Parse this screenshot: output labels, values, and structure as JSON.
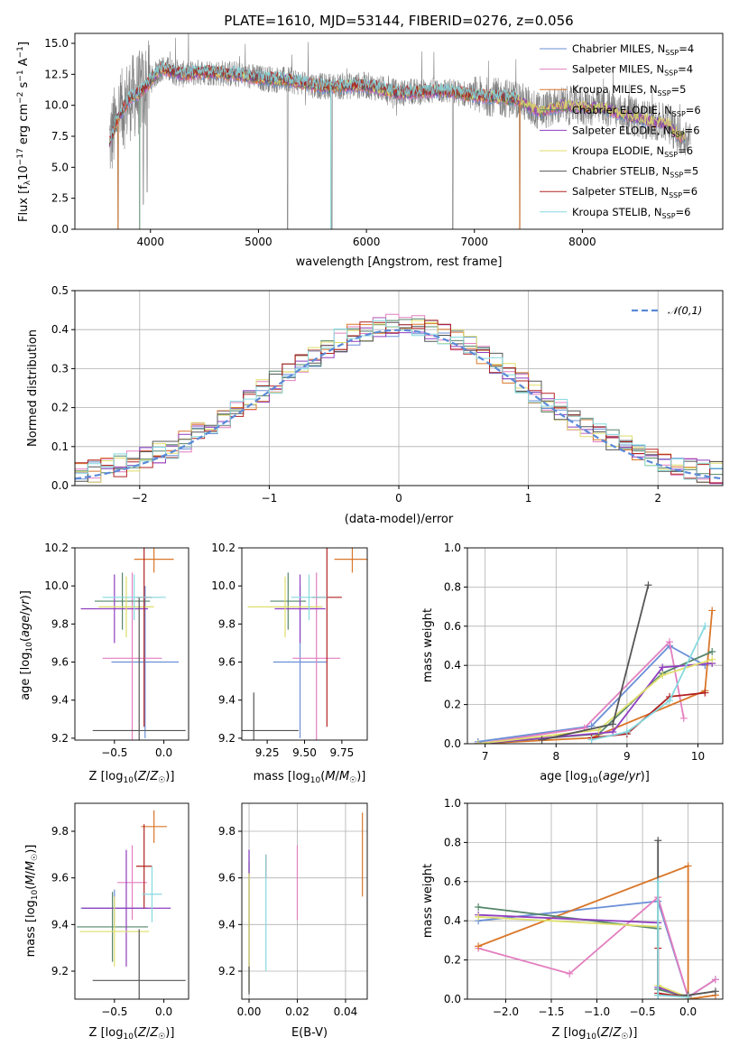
{
  "colors": [
    "#6a8fd6",
    "#e37fbf",
    "#d9772a",
    "#55866a",
    "#8f3fbf",
    "#dede6a",
    "#555555",
    "#b22222",
    "#86d9df"
  ],
  "chart_data": [
    {
      "type": "line",
      "title": "PLATE=1610, MJD=53144, FIBERID=0276, z=0.056",
      "xlabel": "wavelength [Angstrom, rest frame]",
      "ylabel": "Flux [f_λ10^-17 erg cm^-2 s^-1 A^-1]",
      "xlim": [
        3300,
        9300
      ],
      "ylim": [
        0,
        15.8
      ],
      "xticks": [
        4000,
        5000,
        6000,
        7000,
        8000
      ],
      "yticks": [
        0.0,
        2.5,
        5.0,
        7.5,
        10.0,
        12.5,
        15.0
      ],
      "legend_position": "upper right",
      "legend": [
        "Chabrier MILES, N_SSP=4",
        "Salpeter MILES, N_SSP=4",
        "Kroupa MILES, N_SSP=5",
        "Chabrier ELODIE, N_SSP=6",
        "Salpeter ELODIE, N_SSP=6",
        "Kroupa ELODIE, N_SSP=6",
        "Chabrier STELIB, N_SSP=5",
        "Salpeter STELIB, N_SSP=6",
        "Kroupa STELIB, N_SSP=6"
      ],
      "data_series": {
        "name": "data",
        "color": "#808080",
        "wavelength_range": [
          3600,
          9000
        ],
        "approx_level": 11.5
      },
      "continuum_points": [
        [
          3620,
          7.0
        ],
        [
          3700,
          9.0
        ],
        [
          3800,
          10.5
        ],
        [
          3900,
          11.0
        ],
        [
          4000,
          12.0
        ],
        [
          4100,
          13.0
        ],
        [
          4300,
          12.5
        ],
        [
          4500,
          12.7
        ],
        [
          4800,
          12.5
        ],
        [
          5000,
          12.2
        ],
        [
          5300,
          12.0
        ],
        [
          5600,
          11.5
        ],
        [
          6000,
          11.6
        ],
        [
          6300,
          11.0
        ],
        [
          6700,
          11.2
        ],
        [
          7000,
          10.8
        ],
        [
          7400,
          10.5
        ],
        [
          7600,
          9.5
        ],
        [
          7800,
          10.0
        ],
        [
          8200,
          9.8
        ],
        [
          8500,
          9.0
        ],
        [
          8800,
          8.5
        ],
        [
          8900,
          7.5
        ]
      ]
    },
    {
      "type": "histogram",
      "xlabel": "(data-model)/error",
      "ylabel": "Normed distribution",
      "xlim": [
        -2.5,
        2.5
      ],
      "ylim": [
        0,
        0.5
      ],
      "xticks": [
        -2,
        -1,
        0,
        1,
        2
      ],
      "yticks": [
        0.0,
        0.1,
        0.2,
        0.3,
        0.4,
        0.5
      ],
      "grid": true,
      "legend": [
        "𝒩(0,1)"
      ],
      "legend_position": "upper right",
      "reference_curve": {
        "name": "𝒩(0,1)",
        "mean": 0,
        "sigma": 1,
        "style": "dashed"
      },
      "bin_width": 0.1
    },
    {
      "type": "scatter",
      "xlabel": "Z [log10(Z/Z☉)]",
      "ylabel": "age [log10(age/yr)]",
      "xlim": [
        -0.9,
        0.25
      ],
      "ylim": [
        9.19,
        10.2
      ],
      "xticks": [
        -0.5,
        0.0
      ],
      "yticks": [
        9.2,
        9.4,
        9.6,
        9.8,
        10.0,
        10.2
      ],
      "points": [
        {
          "c": 0,
          "x": -0.19,
          "y": 9.6,
          "xerr": 0.34,
          "yerr": 0.4
        },
        {
          "c": 1,
          "x": -0.32,
          "y": 9.62,
          "xerr": 0.3,
          "yerr": 0.45
        },
        {
          "c": 2,
          "x": -0.1,
          "y": 10.14,
          "xerr": 0.2,
          "yerr": 0.07
        },
        {
          "c": 3,
          "x": -0.42,
          "y": 9.92,
          "xerr": 0.28,
          "yerr": 0.15
        },
        {
          "c": 4,
          "x": -0.5,
          "y": 9.88,
          "xerr": 0.34,
          "yerr": 0.18
        },
        {
          "c": 5,
          "x": -0.38,
          "y": 9.89,
          "xerr": 0.28,
          "yerr": 0.16
        },
        {
          "c": 6,
          "x": -0.25,
          "y": 9.24,
          "xerr": 0.47,
          "yerr": 0.7
        },
        {
          "c": 7,
          "x": -0.2,
          "y": 9.94,
          "xerr": 0.08,
          "yerr": 0.68
        },
        {
          "c": 8,
          "x": -0.3,
          "y": 9.94,
          "xerr": 0.32,
          "yerr": 0.12
        }
      ]
    },
    {
      "type": "scatter",
      "xlabel": "mass [log10(M/M☉)]",
      "ylabel": "",
      "xlim": [
        9.08,
        9.92
      ],
      "ylim": [
        9.19,
        10.2
      ],
      "xticks": [
        9.25,
        9.5,
        9.75
      ],
      "yticks": [
        9.2,
        9.4,
        9.6,
        9.8,
        10.0,
        10.2
      ],
      "points": [
        {
          "c": 0,
          "x": 9.47,
          "y": 9.6,
          "xerr": 0.18,
          "yerr": 0.4
        },
        {
          "c": 1,
          "x": 9.58,
          "y": 9.62,
          "xerr": 0.16,
          "yerr": 0.45
        },
        {
          "c": 2,
          "x": 9.82,
          "y": 10.14,
          "xerr": 0.12,
          "yerr": 0.07
        },
        {
          "c": 3,
          "x": 9.39,
          "y": 9.92,
          "xerr": 0.12,
          "yerr": 0.15
        },
        {
          "c": 4,
          "x": 9.47,
          "y": 9.88,
          "xerr": 0.17,
          "yerr": 0.18
        },
        {
          "c": 5,
          "x": 9.37,
          "y": 9.89,
          "xerr": 0.25,
          "yerr": 0.16
        },
        {
          "c": 6,
          "x": 9.16,
          "y": 9.24,
          "xerr": 0.3,
          "yerr": 0.2
        },
        {
          "c": 7,
          "x": 9.65,
          "y": 9.94,
          "xerr": 0.1,
          "yerr": 0.68
        },
        {
          "c": 8,
          "x": 9.53,
          "y": 9.94,
          "xerr": 0.12,
          "yerr": 0.12
        }
      ]
    },
    {
      "type": "line",
      "xlabel": "age [log10(age/yr)]",
      "ylabel": "mass weight",
      "xlim": [
        6.75,
        10.35
      ],
      "ylim": [
        0,
        1.0
      ],
      "xticks": [
        7,
        8,
        9,
        10
      ],
      "yticks": [
        0.0,
        0.2,
        0.4,
        0.6,
        0.8,
        1.0
      ],
      "grid": true,
      "series": [
        {
          "c": 0,
          "x": [
            6.9,
            8.5,
            9.6,
            10.1
          ],
          "y": [
            0.01,
            0.09,
            0.5,
            0.4
          ]
        },
        {
          "c": 1,
          "x": [
            6.9,
            8.4,
            9.6,
            9.8
          ],
          "y": [
            0.0,
            0.08,
            0.52,
            0.13
          ]
        },
        {
          "c": 2,
          "x": [
            6.9,
            8.5,
            10.1,
            10.2
          ],
          "y": [
            0.0,
            0.03,
            0.27,
            0.68
          ]
        },
        {
          "c": 3,
          "x": [
            6.9,
            8.6,
            9.5,
            10.2
          ],
          "y": [
            0.0,
            0.05,
            0.36,
            0.47
          ]
        },
        {
          "c": 4,
          "x": [
            6.9,
            8.8,
            9.5,
            10.2
          ],
          "y": [
            0.0,
            0.06,
            0.39,
            0.41
          ]
        },
        {
          "c": 5,
          "x": [
            6.9,
            8.6,
            9.5,
            10.2
          ],
          "y": [
            0.0,
            0.07,
            0.35,
            0.43
          ]
        },
        {
          "c": 6,
          "x": [
            7.8,
            8.8,
            9.3
          ],
          "y": [
            0.02,
            0.1,
            0.81
          ]
        },
        {
          "c": 7,
          "x": [
            8.5,
            9.0,
            9.6,
            10.1
          ],
          "y": [
            0.03,
            0.05,
            0.24,
            0.26
          ]
        },
        {
          "c": 8,
          "x": [
            8.5,
            9.0,
            9.6,
            10.1
          ],
          "y": [
            0.02,
            0.06,
            0.22,
            0.6
          ]
        }
      ]
    },
    {
      "type": "scatter",
      "xlabel": "Z [log10(Z/Z☉)]",
      "ylabel": "mass [log10(M/M☉)]",
      "xlim": [
        -0.9,
        0.25
      ],
      "ylim": [
        9.08,
        9.92
      ],
      "xticks": [
        -0.5,
        0.0
      ],
      "yticks": [
        9.2,
        9.4,
        9.6,
        9.8
      ],
      "points": [
        {
          "c": 0,
          "x": -0.5,
          "y": 9.47,
          "xerr": 0.34,
          "yerr": 0.08
        },
        {
          "c": 1,
          "x": -0.32,
          "y": 9.58,
          "xerr": 0.15,
          "yerr": 0.16
        },
        {
          "c": 2,
          "x": -0.1,
          "y": 9.82,
          "xerr": 0.13,
          "yerr": 0.07
        },
        {
          "c": 3,
          "x": -0.52,
          "y": 9.39,
          "xerr": 0.36,
          "yerr": 0.15
        },
        {
          "c": 4,
          "x": -0.38,
          "y": 9.47,
          "xerr": 0.45,
          "yerr": 0.25
        },
        {
          "c": 5,
          "x": -0.5,
          "y": 9.37,
          "xerr": 0.35,
          "yerr": 0.15
        },
        {
          "c": 6,
          "x": -0.25,
          "y": 9.16,
          "xerr": 0.47,
          "yerr": 0.22
        },
        {
          "c": 7,
          "x": -0.2,
          "y": 9.65,
          "xerr": 0.08,
          "yerr": 0.18
        },
        {
          "c": 8,
          "x": -0.12,
          "y": 9.53,
          "xerr": 0.1,
          "yerr": 0.12
        }
      ]
    },
    {
      "type": "scatter",
      "xlabel": "E(B-V)",
      "ylabel": "",
      "xlim": [
        -0.003,
        0.049
      ],
      "ylim": [
        9.08,
        9.92
      ],
      "xticks": [
        0.0,
        0.02,
        0.04
      ],
      "yticks": [
        9.2,
        9.4,
        9.6,
        9.8
      ],
      "grid": true,
      "points": [
        {
          "c": 0,
          "x": 0.0,
          "y": 9.47,
          "yerr": 0.25
        },
        {
          "c": 1,
          "x": 0.02,
          "y": 9.58,
          "yerr": 0.16
        },
        {
          "c": 2,
          "x": 0.047,
          "y": 9.7,
          "yerr": 0.18
        },
        {
          "c": 3,
          "x": 0.0,
          "y": 9.39,
          "yerr": 0.28
        },
        {
          "c": 4,
          "x": 0.0,
          "y": 9.47,
          "yerr": 0.25
        },
        {
          "c": 5,
          "x": 0.0,
          "y": 9.37,
          "yerr": 0.25
        },
        {
          "c": 6,
          "x": 0.0,
          "y": 9.16,
          "yerr": 0.06
        },
        {
          "c": 7,
          "x": 0.007,
          "y": 9.65,
          "yerr": 0.05
        },
        {
          "c": 8,
          "x": 0.007,
          "y": 9.45,
          "yerr": 0.25
        }
      ]
    },
    {
      "type": "line",
      "xlabel": "Z [log10(Z/Z☉)]",
      "ylabel": "mass weight",
      "xlim": [
        -2.42,
        0.38
      ],
      "ylim": [
        0,
        1.0
      ],
      "xticks": [
        -2.0,
        -1.5,
        -1.0,
        -0.5,
        0.0
      ],
      "yticks": [
        0.0,
        0.2,
        0.4,
        0.6,
        0.8,
        1.0
      ],
      "grid": true,
      "series": [
        {
          "c": 0,
          "x": [
            -2.3,
            -0.33,
            0.0,
            0.3
          ],
          "y": [
            0.4,
            0.5,
            0.01,
            0.1
          ]
        },
        {
          "c": 1,
          "x": [
            -2.3,
            -1.3,
            -0.33,
            0.0,
            0.3
          ],
          "y": [
            0.26,
            0.13,
            0.52,
            0.01,
            0.1
          ]
        },
        {
          "c": 2,
          "x": [
            -2.3,
            0.0,
            0.0,
            0.3
          ],
          "y": [
            0.27,
            0.68,
            0.0,
            0.02
          ]
        },
        {
          "c": 3,
          "x": [
            -2.3,
            -0.33,
            -0.33,
            0.0
          ],
          "y": [
            0.47,
            0.36,
            0.05,
            0.01
          ]
        },
        {
          "c": 4,
          "x": [
            -2.3,
            -0.33,
            -0.33,
            0.0
          ],
          "y": [
            0.43,
            0.39,
            0.06,
            0.01
          ]
        },
        {
          "c": 5,
          "x": [
            -2.3,
            -0.33,
            -0.33,
            0.0
          ],
          "y": [
            0.42,
            0.37,
            0.07,
            0.01
          ]
        },
        {
          "c": 6,
          "x": [
            -0.33,
            -0.33,
            0.0,
            0.3
          ],
          "y": [
            0.81,
            0.02,
            0.02,
            0.04
          ]
        },
        {
          "c": 7,
          "x": [
            -0.33,
            -0.33,
            0.0
          ],
          "y": [
            0.26,
            0.03,
            0.01
          ]
        },
        {
          "c": 8,
          "x": [
            -0.33,
            -0.33,
            0.0
          ],
          "y": [
            0.6,
            0.02,
            0.01
          ]
        }
      ]
    }
  ]
}
